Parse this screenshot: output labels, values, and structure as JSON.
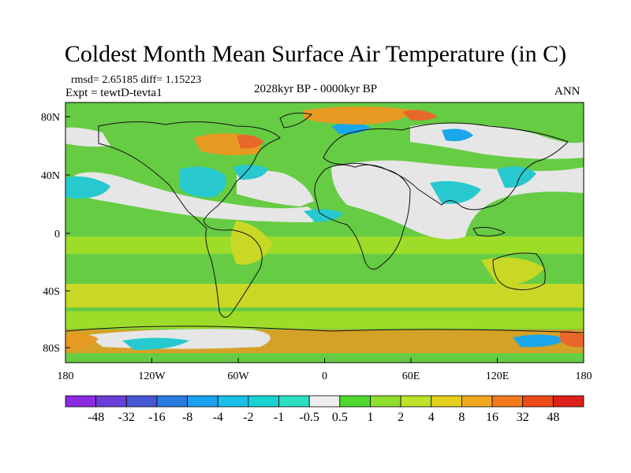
{
  "title": "Coldest Month Mean Surface Air Temperature (in C)",
  "stats": "rmsd= 2.65185 diff= 1.15223",
  "experiment": "Expt = tewtD-tevta1",
  "period": "2028kyr BP - 0000kyr BP",
  "season": "ANN",
  "lat_ticks": [
    "80N",
    "40N",
    "0",
    "40S",
    "80S"
  ],
  "lon_ticks": [
    "180",
    "120W",
    "60W",
    "0",
    "60E",
    "120E",
    "180"
  ],
  "colorbar": {
    "labels": [
      "-48",
      "-32",
      "-16",
      "-8",
      "-4",
      "-2",
      "-1",
      "-0.5",
      "0.5",
      "1",
      "2",
      "4",
      "8",
      "16",
      "32",
      "48"
    ],
    "colors": [
      "#8a2be2",
      "#6a3ed8",
      "#4656d4",
      "#2a7be0",
      "#1aa0f0",
      "#19bfe6",
      "#17d3d3",
      "#2ae0c0",
      "#eeeeee",
      "#4fd92e",
      "#8ede2e",
      "#bde228",
      "#e4cf1a",
      "#f0a820",
      "#f27a1c",
      "#ec4a16",
      "#e0201a"
    ]
  },
  "map_colors": {
    "ocean": "#66cc44",
    "neutral": "#e6e6e6",
    "cool": "#27c9cf",
    "cooler": "#1aa7ea",
    "warm": "#9edc2a",
    "warmer": "#c9d824",
    "hot": "#e79a22",
    "hotter": "#e8682a",
    "coast": "#111111"
  }
}
